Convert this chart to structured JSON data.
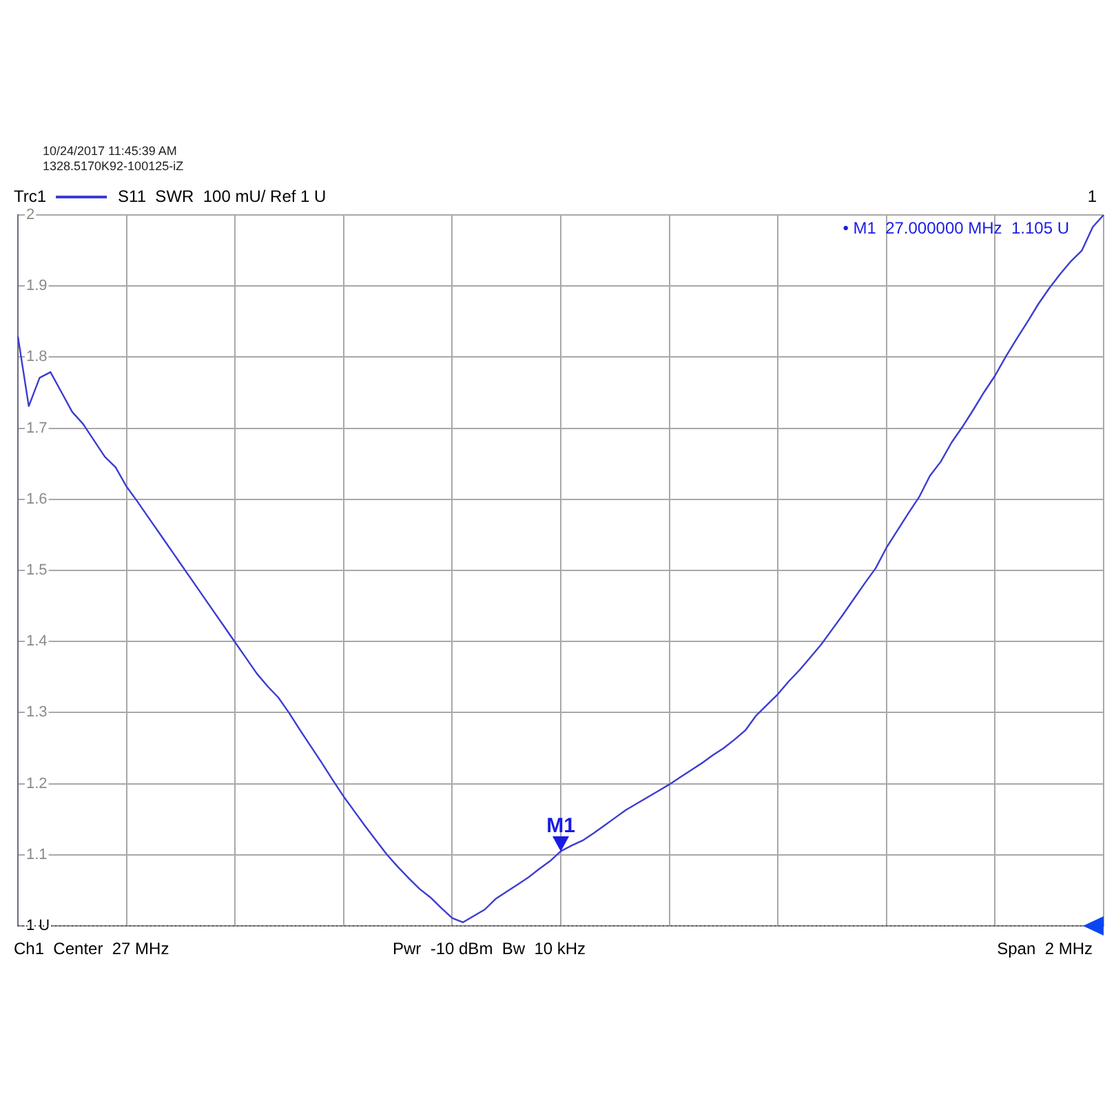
{
  "chart_data": {
    "type": "line",
    "legend_title": "Trc1",
    "annotations": [
      "10/24/2017 11:45:39 AM",
      "1328.5170K92-100125-iZ",
      "1",
      "• M1  27.000000 MHz  1.105 U",
      {
        "text": "M1",
        "y": 1.105
      },
      "Ch1  Center  27 MHz",
      "Pwr  -10 dBm  Bw  10 kHz",
      "Span  2 MHz"
    ],
    "categories": [
      null,
      null,
      null,
      null,
      null,
      null,
      null,
      null,
      null,
      null,
      null,
      null,
      null,
      null,
      null,
      null,
      null,
      null,
      null,
      null,
      null,
      null,
      null,
      null,
      null,
      null,
      null,
      null,
      null,
      null,
      null,
      null,
      null,
      null,
      null,
      null,
      null,
      null,
      null,
      null,
      null,
      null,
      null,
      null,
      null,
      null,
      null,
      null,
      null,
      null,
      null,
      null,
      null,
      null,
      null,
      null,
      null,
      null,
      null,
      null,
      null,
      null,
      null,
      null,
      null,
      null,
      null,
      null,
      null,
      null,
      null,
      null,
      null,
      null,
      null,
      null,
      null,
      null,
      null,
      null,
      null,
      null,
      null,
      null,
      null,
      null,
      null,
      null,
      null,
      null,
      null,
      null,
      null,
      null,
      null,
      null,
      null,
      null,
      null,
      null,
      null
    ],
    "series": [
      {
        "name": "S11  SWR  100 mU/ Ref 1 U",
        "color": "#3c3cd2",
        "values": [
          1.829,
          1.731,
          1.771,
          1.779,
          1.751,
          1.723,
          1.706,
          1.683,
          1.66,
          1.645,
          1.618,
          1.597,
          1.575,
          1.553,
          1.531,
          1.509,
          1.487,
          1.465,
          1.443,
          1.421,
          1.399,
          1.377,
          1.355,
          1.337,
          1.321,
          1.299,
          1.275,
          1.252,
          1.229,
          1.205,
          1.182,
          1.161,
          1.14,
          1.12,
          1.1,
          1.083,
          1.067,
          1.052,
          1.04,
          1.025,
          1.011,
          1.005,
          1.014,
          1.023,
          1.038,
          1.048,
          1.058,
          1.068,
          1.08,
          1.091,
          1.105,
          1.113,
          1.12,
          1.13,
          1.141,
          1.152,
          1.163,
          1.172,
          1.181,
          1.19,
          1.199,
          1.209,
          1.219,
          1.229,
          1.24,
          1.25,
          1.262,
          1.275,
          1.296,
          1.311,
          1.326,
          1.344,
          1.36,
          1.378,
          1.396,
          1.417,
          1.438,
          1.46,
          1.482,
          1.503,
          1.532,
          1.556,
          1.58,
          1.603,
          1.633,
          1.653,
          1.68,
          1.702,
          1.726,
          1.751,
          1.774,
          1.801,
          1.826,
          1.85,
          1.875,
          1.897,
          1.917,
          1.935,
          1.95,
          1.983,
          2.0
        ]
      }
    ],
    "ylim": [
      1,
      2
    ],
    "yticks": [
      {
        "value": 1,
        "label": "1 U"
      },
      1.1,
      1.2,
      1.3,
      1.4,
      1.5,
      1.6,
      1.7,
      1.8,
      1.9,
      2
    ],
    "ref_lines": [
      {
        "axis": "y",
        "value": 1,
        "color": "#555555",
        "line_style": "dotted"
      }
    ],
    "grid": true,
    "legend": "top left",
    "tick_labels": "y"
  }
}
